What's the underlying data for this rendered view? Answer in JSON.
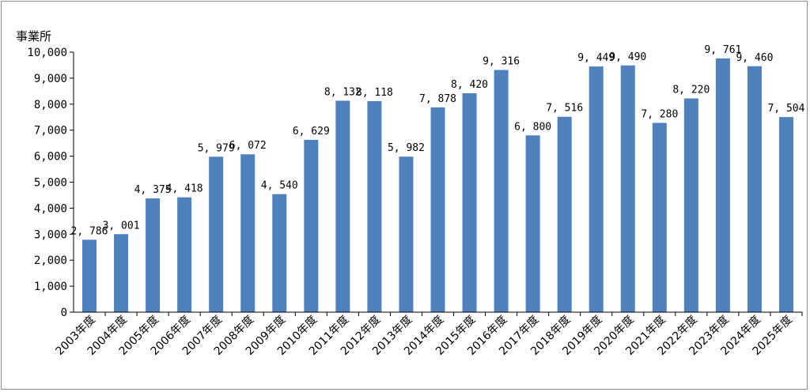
{
  "chart_data": {
    "type": "bar",
    "title": "",
    "xlabel": "",
    "ylabel": "事業所",
    "ylim": [
      0,
      10000
    ],
    "y_ticks": [
      "0",
      "1,000",
      "2,000",
      "3,000",
      "4,000",
      "5,000",
      "6,000",
      "7,000",
      "8,000",
      "9,000",
      "10,000"
    ],
    "grid": false,
    "legend": "none",
    "bar_color": "#4f81bd",
    "categories": [
      "2003年度",
      "2004年度",
      "2005年度",
      "2006年度",
      "2007年度",
      "2008年度",
      "2009年度",
      "2010年度",
      "2011年度",
      "2012年度",
      "2013年度",
      "2014年度",
      "2015年度",
      "2016年度",
      "2017年度",
      "2018年度",
      "2019年度",
      "2020年度",
      "2021年度",
      "2022年度",
      "2023年度",
      "2024年度",
      "2025年度"
    ],
    "values": [
      2786,
      3001,
      4375,
      4418,
      5979,
      6072,
      4540,
      6629,
      8132,
      8118,
      5982,
      7878,
      8420,
      9316,
      6800,
      7516,
      9449,
      9490,
      7280,
      8220,
      9761,
      9460,
      7504
    ],
    "value_labels": [
      "2, 786",
      "3, 001",
      "4, 375",
      "4, 418",
      "5, 979",
      "6, 072",
      "4, 540",
      "6, 629",
      "8, 132",
      "8, 118",
      "5, 982",
      "7, 878",
      "8, 420",
      "9, 316",
      "6, 800",
      "7, 516",
      "9, 449",
      "9, 490",
      "7, 280",
      "8, 220",
      "9, 761",
      "9, 460",
      "7, 504"
    ]
  }
}
